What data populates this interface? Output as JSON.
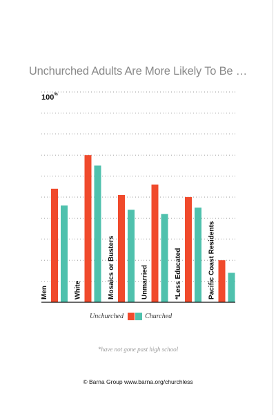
{
  "chart_data": {
    "type": "bar",
    "title": "Unchurched Adults Are More Likely To Be …",
    "ymax_label": "100",
    "ymax_unit": "%",
    "ylim": [
      0,
      100
    ],
    "grid": true,
    "categories": [
      "Men",
      "White",
      "Mosaics or Busters",
      "Unmarried",
      "*Less Educated",
      "Pacific Coast Residents"
    ],
    "series": [
      {
        "name": "Unchurched",
        "color": "#f04a2c",
        "values": [
          54,
          70,
          51,
          56,
          50,
          20
        ]
      },
      {
        "name": "Churched",
        "color": "#4fc1ad",
        "values": [
          46,
          65,
          44,
          42,
          45,
          14
        ]
      }
    ],
    "legend": "bottom-center",
    "footnote": "*have not gone past high school"
  },
  "credit": "© Barna Group www.barna.org/churchless"
}
